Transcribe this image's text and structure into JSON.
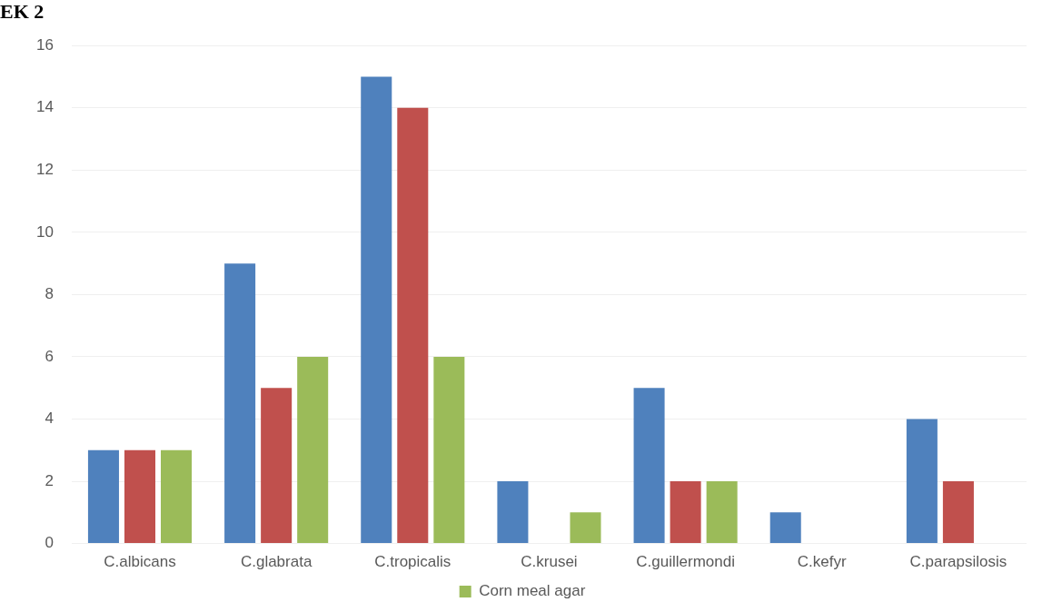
{
  "chart_data": {
    "type": "bar",
    "title": "EK 2",
    "categories": [
      "C.albicans",
      "C.glabrata",
      "C.tropicalis",
      "C.krusei",
      "C.guillermondi",
      "C.kefyr",
      "C.parapsilosis"
    ],
    "series": [
      {
        "color": "#4f81bd",
        "values": [
          3,
          9,
          15,
          2,
          5,
          1,
          4
        ]
      },
      {
        "color": "#c0504d",
        "values": [
          3,
          5,
          14,
          0,
          2,
          0,
          2
        ]
      },
      {
        "name": "Corn meal agar",
        "color": "#9bbb59",
        "values": [
          3,
          6,
          6,
          1,
          2,
          0,
          0
        ]
      }
    ],
    "ylim": [
      0,
      16
    ],
    "yticks": [
      0,
      2,
      4,
      6,
      8,
      10,
      12,
      14,
      16
    ],
    "grid": "y",
    "legend": "bottom"
  }
}
